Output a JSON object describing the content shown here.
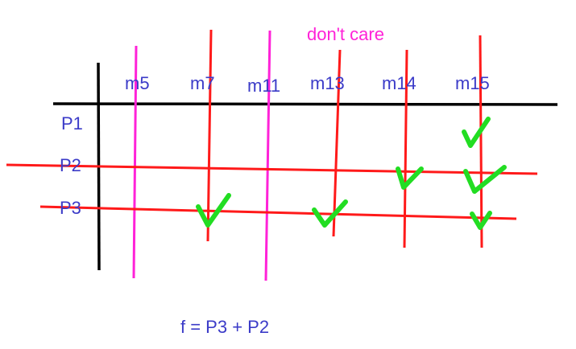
{
  "note": "don't care",
  "columns": [
    "m5",
    "m7",
    "m11",
    "m13",
    "m14",
    "m15"
  ],
  "rows": [
    "P1",
    "P2",
    "P3"
  ],
  "function_text": "f = P3 + P2",
  "checks": [
    {
      "row": "P1",
      "col": "m15"
    },
    {
      "row": "P2",
      "col": "m14"
    },
    {
      "row": "P2",
      "col": "m15"
    },
    {
      "row": "P3",
      "col": "m7"
    },
    {
      "row": "P3",
      "col": "m13"
    },
    {
      "row": "P3",
      "col": "m15"
    }
  ],
  "dont_care_columns": [
    "m5",
    "m11"
  ],
  "crossed_columns": [
    "m7",
    "m13",
    "m14",
    "m15"
  ],
  "crossed_rows": [
    "P2",
    "P3"
  ],
  "colors": {
    "label": "#3b3bc8",
    "dont_care": "#ff22d8",
    "cross": "#ff1a1a",
    "check": "#22dd22",
    "grid": "#000000"
  }
}
